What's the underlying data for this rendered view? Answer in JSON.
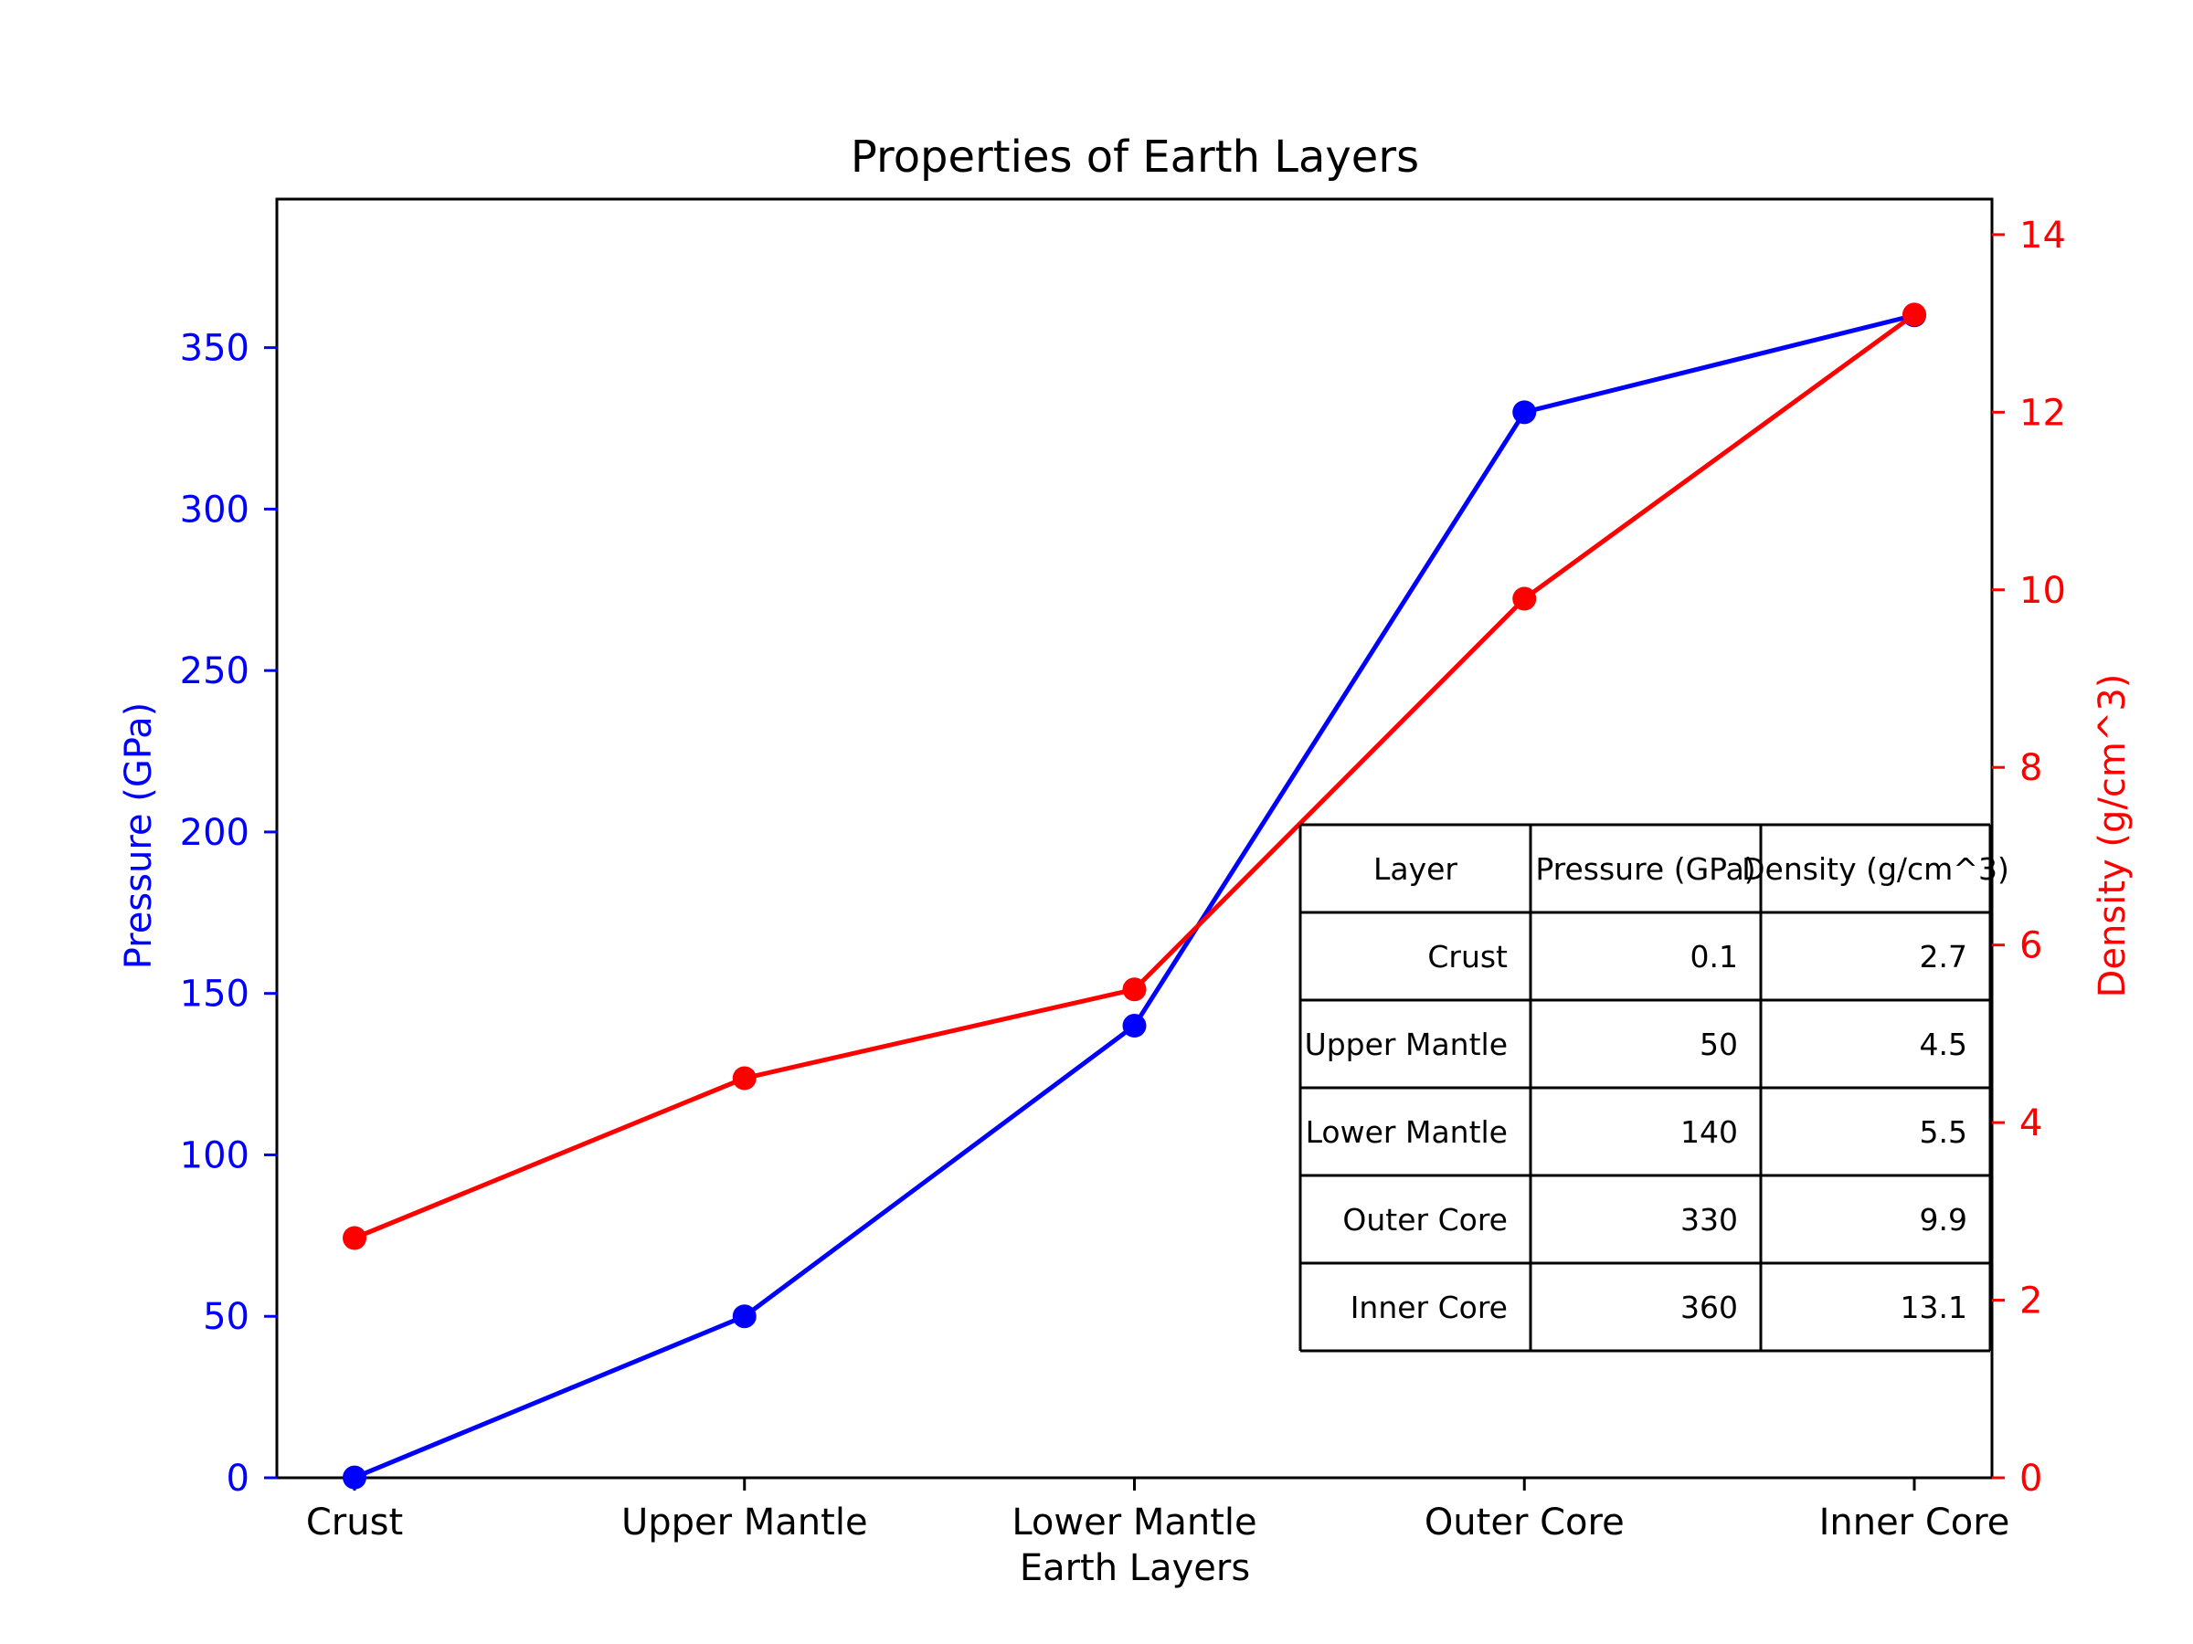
{
  "chart_data": {
    "type": "line",
    "title": "Properties of Earth Layers",
    "xlabel": "Earth Layers",
    "categories": [
      "Crust",
      "Upper Mantle",
      "Lower Mantle",
      "Outer Core",
      "Inner Core"
    ],
    "y_left": {
      "label": "Pressure (GPa)",
      "color": "#0000ff",
      "ylim": [
        0,
        396
      ],
      "ticks": [
        0,
        50,
        100,
        150,
        200,
        250,
        300,
        350
      ]
    },
    "y_right": {
      "label": "Density (g/cm^3)",
      "color": "#ff0000",
      "ylim": [
        0,
        14.4
      ],
      "ticks": [
        0,
        2,
        4,
        6,
        8,
        10,
        12,
        14
      ]
    },
    "series": [
      {
        "name": "Pressure (GPa)",
        "axis": "left",
        "color": "#0000ff",
        "marker": "circle",
        "values": [
          0.1,
          50,
          140,
          330,
          360
        ]
      },
      {
        "name": "Density (g/cm^3)",
        "axis": "right",
        "color": "#ff0000",
        "marker": "circle",
        "values": [
          2.7,
          4.5,
          5.5,
          9.9,
          13.1
        ]
      }
    ],
    "grid": false,
    "legend": "none",
    "table": {
      "placement": "lower-right, inside plot",
      "columns": [
        "Layer",
        "Pressure (GPa)",
        "Density (g/cm^3)"
      ],
      "rows": [
        [
          "Crust",
          "0.1",
          "2.7"
        ],
        [
          "Upper Mantle",
          "50",
          "4.5"
        ],
        [
          "Lower Mantle",
          "140",
          "5.5"
        ],
        [
          "Outer Core",
          "330",
          "9.9"
        ],
        [
          "Inner Core",
          "360",
          "13.1"
        ]
      ]
    }
  }
}
